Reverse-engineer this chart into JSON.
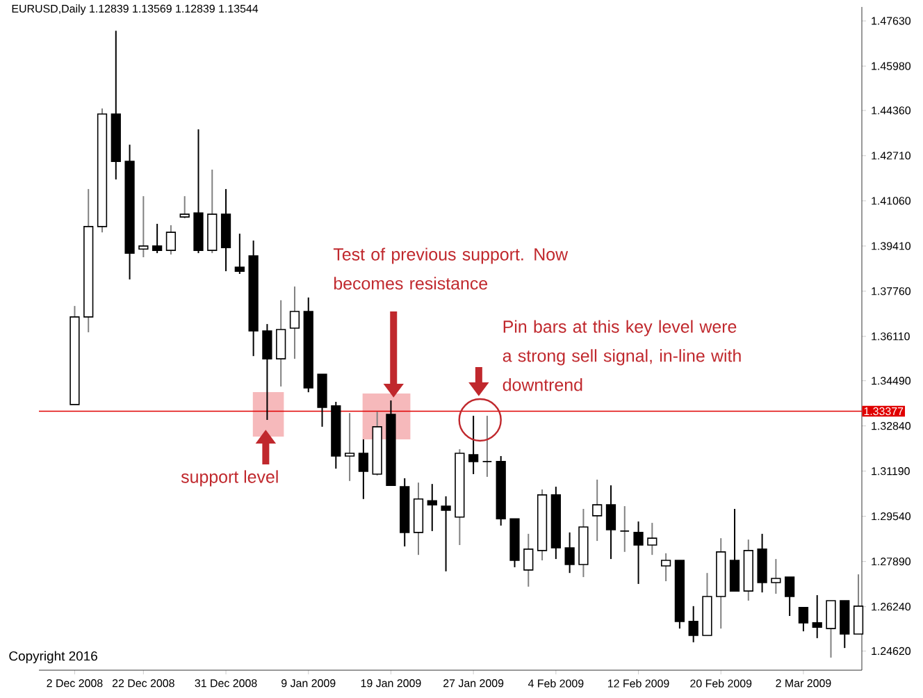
{
  "chart_data": {
    "type": "candlestick",
    "title": "EURUSD,Daily 1.12839 1.13569 1.12839 1.13544",
    "categories": [
      "2 Dec 2008",
      null,
      null,
      null,
      null,
      "22 Dec 2008",
      null,
      null,
      null,
      null,
      null,
      "31 Dec 2008",
      null,
      null,
      null,
      null,
      null,
      "9 Jan 2009",
      null,
      null,
      null,
      null,
      null,
      "19 Jan 2009",
      null,
      null,
      null,
      null,
      null,
      "27 Jan 2009",
      null,
      null,
      null,
      null,
      null,
      "4 Feb 2009",
      null,
      null,
      null,
      null,
      null,
      "12 Feb 2009",
      null,
      null,
      null,
      null,
      null,
      "20 Feb 2009",
      null,
      null,
      null,
      null,
      null,
      "2 Mar 2009",
      null,
      null,
      null,
      null
    ],
    "ohlc": [
      [
        1.3362,
        1.3722,
        1.3362,
        1.3682
      ],
      [
        1.3682,
        1.4149,
        1.3626,
        1.4012
      ],
      [
        1.4012,
        1.4443,
        1.3991,
        1.4423
      ],
      [
        1.4423,
        1.4727,
        1.4184,
        1.425
      ],
      [
        1.425,
        1.4311,
        1.3819,
        1.3915
      ],
      [
        1.393,
        1.4123,
        1.39,
        1.3941
      ],
      [
        1.3941,
        1.4022,
        1.3915,
        1.3925
      ],
      [
        1.3925,
        1.4017,
        1.391,
        1.3991
      ],
      [
        1.4047,
        1.4123,
        1.4042,
        1.4057
      ],
      [
        1.4062,
        1.4367,
        1.3915,
        1.3925
      ],
      [
        1.3925,
        1.422,
        1.3915,
        1.4057
      ],
      [
        1.4057,
        1.4149,
        1.3849,
        1.3935
      ],
      [
        1.3864,
        1.3986,
        1.3839,
        1.3849
      ],
      [
        1.3905,
        1.3961,
        1.3539,
        1.3631
      ],
      [
        1.3631,
        1.3656,
        1.3306,
        1.3529
      ],
      [
        1.3529,
        1.3743,
        1.3428,
        1.3636
      ],
      [
        1.3641,
        1.3793,
        1.3529,
        1.3702
      ],
      [
        1.3702,
        1.3753,
        1.3407,
        1.3423
      ],
      [
        1.3473,
        1.3473,
        1.3281,
        1.3352
      ],
      [
        1.3357,
        1.3372,
        1.3128,
        1.3174
      ],
      [
        1.3174,
        1.3331,
        1.3083,
        1.3184
      ],
      [
        1.3184,
        1.3235,
        1.3017,
        1.3118
      ],
      [
        1.3108,
        1.3336,
        1.3103,
        1.3281
      ],
      [
        1.3326,
        1.3377,
        1.3067,
        1.3067
      ],
      [
        1.3062,
        1.3093,
        1.2844,
        1.2895
      ],
      [
        1.2895,
        1.3077,
        1.2813,
        1.3017
      ],
      [
        1.3011,
        1.3072,
        1.29,
        1.2996
      ],
      [
        1.2991,
        1.3027,
        1.2753,
        1.2976
      ],
      [
        1.2951,
        1.3199,
        1.2849,
        1.3184
      ],
      [
        1.3179,
        1.3321,
        1.3108,
        1.3154
      ],
      [
        1.3154,
        1.3321,
        1.3098,
        1.3154
      ],
      [
        1.3154,
        1.3174,
        1.292,
        1.2945
      ],
      [
        1.2945,
        1.2945,
        1.2768,
        1.2793
      ],
      [
        1.2758,
        1.289,
        1.2697,
        1.2834
      ],
      [
        1.2829,
        1.3052,
        1.2793,
        1.3032
      ],
      [
        1.3032,
        1.3062,
        1.2798,
        1.2839
      ],
      [
        1.2839,
        1.2895,
        1.2747,
        1.2778
      ],
      [
        1.2778,
        1.2981,
        1.2732,
        1.2915
      ],
      [
        1.2956,
        1.3088,
        1.2864,
        1.2996
      ],
      [
        1.2996,
        1.3067,
        1.2798,
        1.2905
      ],
      [
        1.29,
        1.2991,
        1.2824,
        1.29
      ],
      [
        1.2895,
        1.2935,
        1.2707,
        1.2849
      ],
      [
        1.2849,
        1.293,
        1.2813,
        1.2874
      ],
      [
        1.2773,
        1.2819,
        1.2717,
        1.2793
      ],
      [
        1.2793,
        1.2793,
        1.2544,
        1.257
      ],
      [
        1.257,
        1.2626,
        1.2494,
        1.2519
      ],
      [
        1.2519,
        1.2747,
        1.2519,
        1.2661
      ],
      [
        1.2661,
        1.2874,
        1.2544,
        1.2824
      ],
      [
        1.2793,
        1.2981,
        1.2681,
        1.2681
      ],
      [
        1.2681,
        1.2869,
        1.2646,
        1.2829
      ],
      [
        1.2834,
        1.289,
        1.2676,
        1.2712
      ],
      [
        1.2712,
        1.2798,
        1.2671,
        1.2727
      ],
      [
        1.2732,
        1.2732,
        1.259,
        1.2661
      ],
      [
        1.2621,
        1.2621,
        1.2534,
        1.2565
      ],
      [
        1.2565,
        1.2666,
        1.2509,
        1.2549
      ],
      [
        1.2544,
        1.2646,
        1.2438,
        1.2646
      ],
      [
        1.2646,
        1.2646,
        1.2473,
        1.2524
      ],
      [
        1.2524,
        1.2742,
        1.2524,
        1.2626
      ]
    ],
    "ylim": [
      1.2392,
      1.4814
    ],
    "yticks": [
      {
        "value": 1.4763,
        "label": "1.47630"
      },
      {
        "value": 1.4598,
        "label": "1.45980"
      },
      {
        "value": 1.4436,
        "label": "1.44360"
      },
      {
        "value": 1.4271,
        "label": "1.42710"
      },
      {
        "value": 1.4106,
        "label": "1.41060"
      },
      {
        "value": 1.3941,
        "label": "1.39410"
      },
      {
        "value": 1.3776,
        "label": "1.37760"
      },
      {
        "value": 1.3611,
        "label": "1.36110"
      },
      {
        "value": 1.3449,
        "label": "1.34490"
      },
      {
        "value": 1.3284,
        "label": "1.32840"
      },
      {
        "value": 1.3119,
        "label": "1.31190"
      },
      {
        "value": 1.2954,
        "label": "1.29540"
      },
      {
        "value": 1.2789,
        "label": "1.27890"
      },
      {
        "value": 1.2624,
        "label": "1.26240"
      },
      {
        "value": 1.2462,
        "label": "1.24620"
      }
    ],
    "ref_lines": [
      {
        "axis": "y",
        "value": 1.33377,
        "label": "1.33377",
        "color": "#e00000"
      }
    ],
    "annotations": [
      "support level",
      "Test of previous support. Now becomes resistance",
      "Pin bars at this key level were a strong sell signal, in-line with downtrend",
      "Copyright 2016"
    ]
  }
}
